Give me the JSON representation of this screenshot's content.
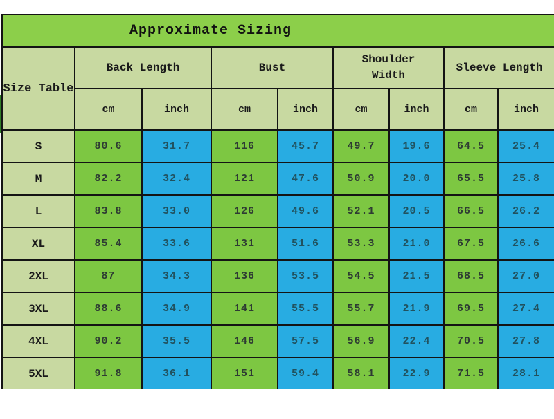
{
  "title": "Approximate Sizing",
  "table": {
    "corner_label": "Size Table",
    "groups": [
      {
        "label": "Back Length"
      },
      {
        "label": "Bust"
      },
      {
        "label": "Shoulder Width"
      },
      {
        "label": "Sleeve Length"
      }
    ],
    "unit_labels": [
      "cm",
      "inch",
      "cm",
      "inch",
      "cm",
      "inch",
      "cm",
      "inch"
    ],
    "rows": [
      {
        "size": "S",
        "values": [
          "80.6",
          "31.7",
          "116",
          "45.7",
          "49.7",
          "19.6",
          "64.5",
          "25.4"
        ]
      },
      {
        "size": "M",
        "values": [
          "82.2",
          "32.4",
          "121",
          "47.6",
          "50.9",
          "20.0",
          "65.5",
          "25.8"
        ]
      },
      {
        "size": "L",
        "values": [
          "83.8",
          "33.0",
          "126",
          "49.6",
          "52.1",
          "20.5",
          "66.5",
          "26.2"
        ]
      },
      {
        "size": "XL",
        "values": [
          "85.4",
          "33.6",
          "131",
          "51.6",
          "53.3",
          "21.0",
          "67.5",
          "26.6"
        ]
      },
      {
        "size": "2XL",
        "values": [
          "87",
          "34.3",
          "136",
          "53.5",
          "54.5",
          "21.5",
          "68.5",
          "27.0"
        ]
      },
      {
        "size": "3XL",
        "values": [
          "88.6",
          "34.9",
          "141",
          "55.5",
          "55.7",
          "21.9",
          "69.5",
          "27.4"
        ]
      },
      {
        "size": "4XL",
        "values": [
          "90.2",
          "35.5",
          "146",
          "57.5",
          "56.9",
          "22.4",
          "70.5",
          "27.8"
        ]
      },
      {
        "size": "5XL",
        "values": [
          "91.8",
          "36.1",
          "151",
          "59.4",
          "58.1",
          "22.9",
          "71.5",
          "28.1"
        ]
      }
    ]
  },
  "colors": {
    "title_bg": "#8ccf4a",
    "header_bg": "#c8d9a1",
    "cm_bg": "#7dc742",
    "inch_bg": "#28ace2",
    "border": "#141414",
    "accent_dark": "#2f7d26"
  }
}
